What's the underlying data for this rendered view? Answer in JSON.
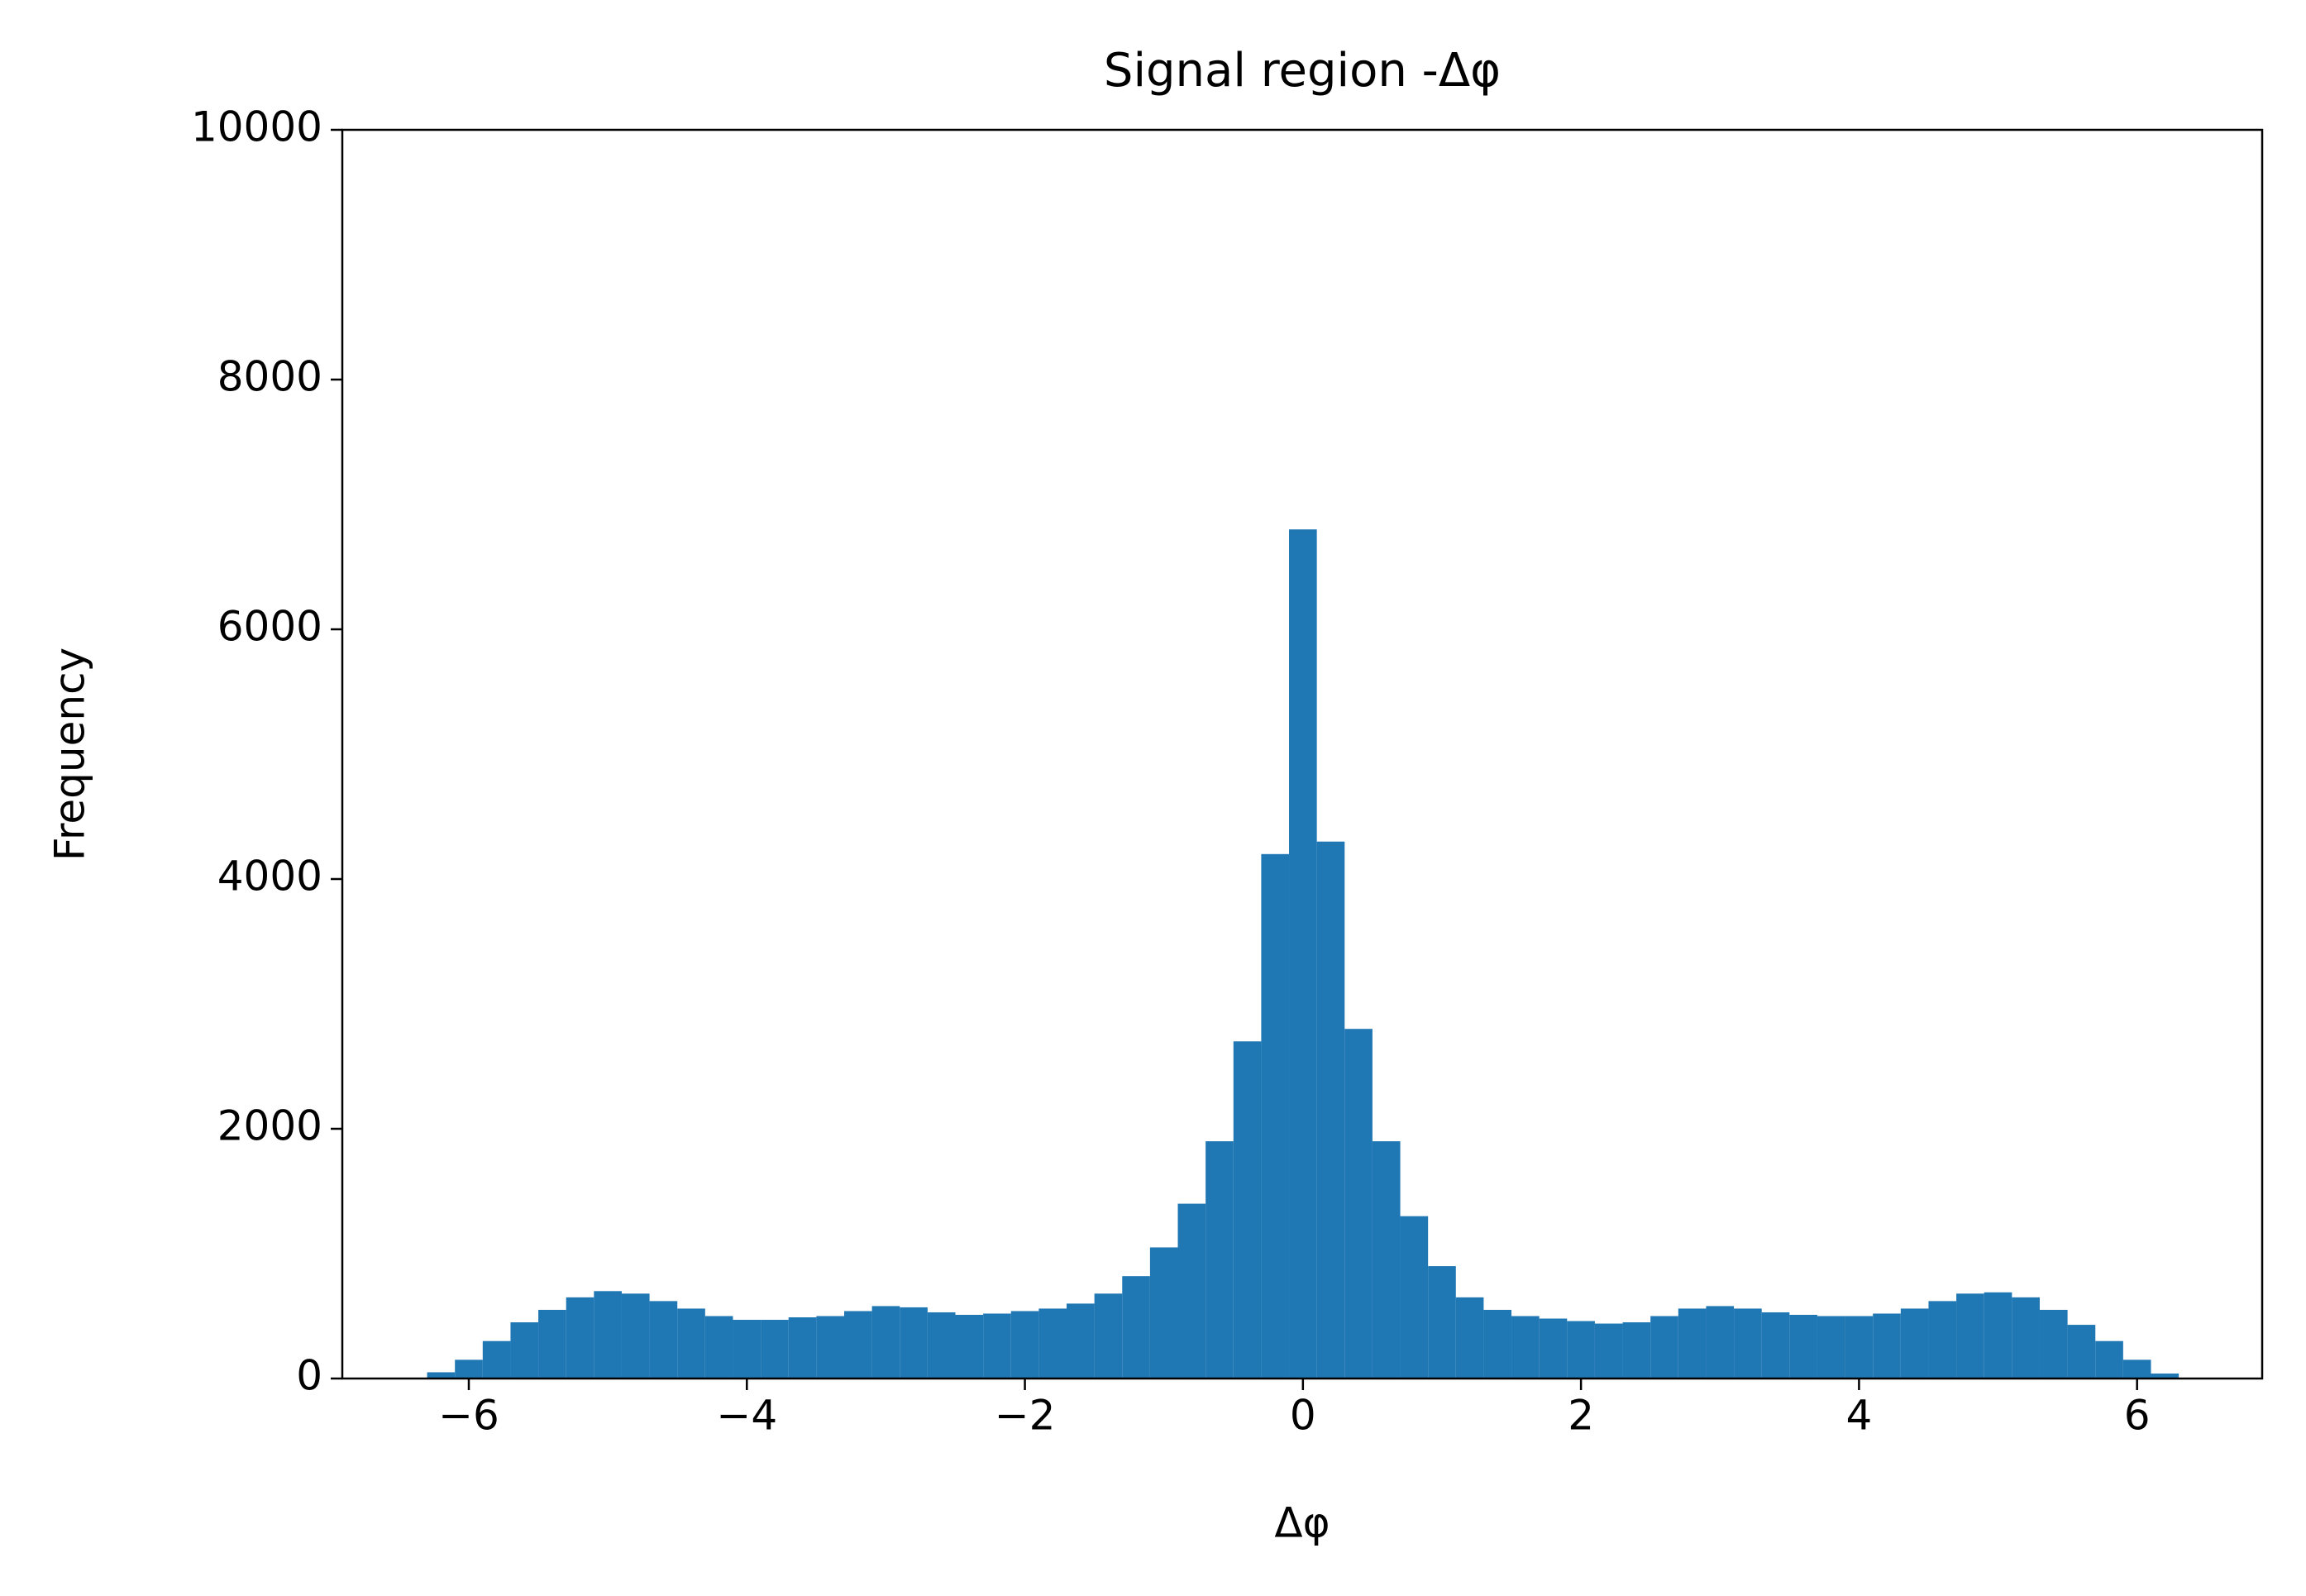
{
  "chart_data": {
    "type": "histogram",
    "title": "Signal region -Δφ",
    "x_label": "Δφ",
    "y_label": "Frequency",
    "color": "#1f77b4",
    "bins": [
      -6.3,
      -6.1,
      -5.9,
      -5.7,
      -5.5,
      -5.3,
      -5.1,
      -4.9,
      -4.7,
      -4.5,
      -4.3,
      -4.1,
      -3.9,
      -3.7,
      -3.5,
      -3.3,
      -3.1,
      -2.9,
      -2.7,
      -2.5,
      -2.3,
      -2.1,
      -1.9,
      -1.7,
      -1.5,
      -1.3,
      -1.1,
      -0.9,
      -0.7,
      -0.5,
      -0.3,
      -0.1,
      0.1,
      0.3,
      0.5,
      0.7,
      0.9,
      1.1,
      1.3,
      1.5,
      1.7,
      1.9,
      2.1,
      2.3,
      2.5,
      2.7,
      2.9,
      3.1,
      3.3,
      3.5,
      3.7,
      3.9,
      4.1,
      4.3,
      4.5,
      4.7,
      4.9,
      5.1,
      5.3,
      5.5,
      5.7,
      5.9,
      6.1,
      6.3
    ],
    "values": [
      50,
      150,
      300,
      450,
      550,
      650,
      700,
      680,
      620,
      560,
      500,
      470,
      470,
      490,
      500,
      540,
      580,
      570,
      530,
      510,
      520,
      540,
      560,
      600,
      680,
      820,
      1050,
      1400,
      1900,
      2700,
      4200,
      6800,
      4300,
      2800,
      1900,
      1300,
      900,
      650,
      550,
      500,
      480,
      460,
      440,
      450,
      500,
      560,
      580,
      560,
      530,
      510,
      500,
      500,
      520,
      560,
      620,
      680,
      690,
      650,
      550,
      430,
      300,
      150,
      40
    ],
    "xlim": [
      -6.91,
      6.9
    ],
    "ylim": [
      0,
      10000
    ],
    "xticks": [
      {
        "value": -6,
        "label": "−6"
      },
      {
        "value": -4,
        "label": "−4"
      },
      {
        "value": -2,
        "label": "−2"
      },
      0,
      2,
      4,
      6
    ],
    "yticks": [
      0,
      2000,
      4000,
      6000,
      8000,
      10000
    ]
  }
}
